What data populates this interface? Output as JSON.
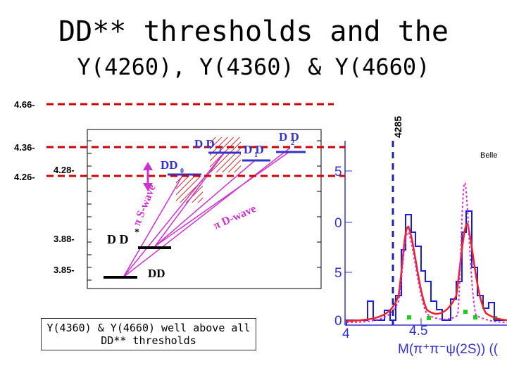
{
  "slide": {
    "title_line1": "DD** thresholds and the",
    "title_line2": "Y(4260), Y(4360) & Y(4660)",
    "note_line1": "Y(4360) & Y(4660) well above all",
    "note_line2": "DD** thresholds"
  },
  "levels": {
    "y4660": "4.66-",
    "y4360": "4.36-",
    "y4260": "4.26-",
    "d428": "4.28-",
    "d388": "3.88-",
    "d385": "3.85-"
  },
  "thresholds": {
    "dd": "DD",
    "ddstar": "D D",
    "star": "*",
    "dd1": "D D",
    "dd1_sub": "1",
    "d1d": "D D",
    "d1d_sub": "1",
    "d2d": "D D",
    "d2d_sub": "2",
    "dd0": "DD",
    "dd0_sub": "0"
  },
  "waves": {
    "s_wave": "π S-wave",
    "d_wave": "π D-wave"
  },
  "inset": {
    "marker": "4285",
    "experiment": "Belle",
    "ytick_5_top": "5",
    "ytick_0": "0",
    "ytick_5_bot": "5",
    "ytick_0_bot": "0",
    "xtick_4": "4",
    "xtick_45": "4.5",
    "xlabel": "M(π⁺π⁻ψ(2S)) (("
  },
  "colors": {
    "threshold_red": "#cc0000",
    "marker_blue": "#2222aa",
    "hist_blue": "#1a1aee",
    "fit_red": "#ee2222",
    "magenta": "#cc33cc",
    "green": "#22cc22"
  }
}
